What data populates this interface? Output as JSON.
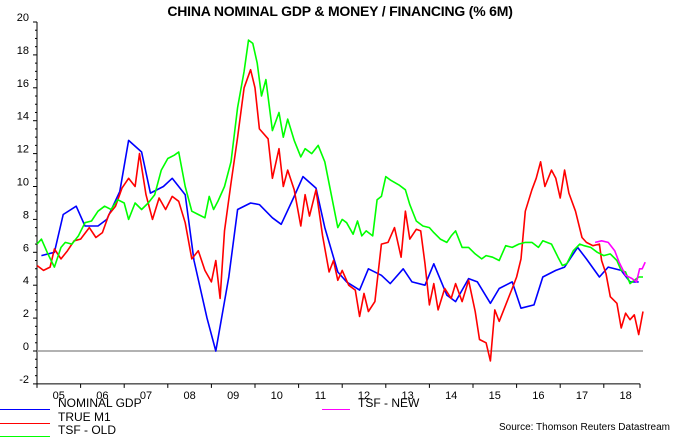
{
  "chart_data": {
    "type": "line",
    "title": "CHINA NOMINAL GDP & MONEY / FINANCING (% 6M)",
    "xlabel": "",
    "ylabel": "",
    "ylim": [
      -2,
      20
    ],
    "yticks": [
      -2,
      0,
      2,
      4,
      6,
      8,
      10,
      12,
      14,
      16,
      18,
      20
    ],
    "xlim": [
      2005.0,
      2018.83
    ],
    "xtick_labels": [
      "05",
      "06",
      "07",
      "08",
      "09",
      "10",
      "11",
      "12",
      "13",
      "14",
      "15",
      "16",
      "17",
      "18"
    ],
    "zero_line": true,
    "grid": false,
    "legend_position": "bottom",
    "series": [
      {
        "name": "NOMINAL GDP",
        "color": "#0000ff",
        "points": [
          [
            2005.1,
            5.8
          ],
          [
            2005.4,
            6.0
          ],
          [
            2005.6,
            8.3
          ],
          [
            2005.9,
            8.8
          ],
          [
            2006.1,
            7.6
          ],
          [
            2006.4,
            7.6
          ],
          [
            2006.6,
            8.0
          ],
          [
            2006.9,
            9.7
          ],
          [
            2007.1,
            12.8
          ],
          [
            2007.4,
            12.1
          ],
          [
            2007.6,
            9.6
          ],
          [
            2007.9,
            10.0
          ],
          [
            2008.1,
            10.5
          ],
          [
            2008.4,
            9.5
          ],
          [
            2008.6,
            5.5
          ],
          [
            2008.9,
            2.0
          ],
          [
            2009.1,
            0.0
          ],
          [
            2009.4,
            4.5
          ],
          [
            2009.6,
            8.6
          ],
          [
            2009.9,
            9.0
          ],
          [
            2010.1,
            8.9
          ],
          [
            2010.4,
            8.1
          ],
          [
            2010.6,
            7.7
          ],
          [
            2010.9,
            9.4
          ],
          [
            2011.1,
            10.6
          ],
          [
            2011.4,
            9.9
          ],
          [
            2011.6,
            7.5
          ],
          [
            2011.9,
            4.8
          ],
          [
            2012.1,
            4.2
          ],
          [
            2012.4,
            3.7
          ],
          [
            2012.6,
            5.0
          ],
          [
            2012.9,
            4.6
          ],
          [
            2013.1,
            4.1
          ],
          [
            2013.4,
            5.0
          ],
          [
            2013.6,
            4.2
          ],
          [
            2013.9,
            4.0
          ],
          [
            2014.1,
            5.3
          ],
          [
            2014.4,
            3.4
          ],
          [
            2014.6,
            3.0
          ],
          [
            2014.9,
            4.4
          ],
          [
            2015.1,
            4.2
          ],
          [
            2015.4,
            2.9
          ],
          [
            2015.6,
            3.8
          ],
          [
            2015.9,
            4.2
          ],
          [
            2016.1,
            2.6
          ],
          [
            2016.4,
            2.8
          ],
          [
            2016.6,
            4.5
          ],
          [
            2016.9,
            4.9
          ],
          [
            2017.1,
            5.1
          ],
          [
            2017.4,
            6.3
          ],
          [
            2017.6,
            5.6
          ],
          [
            2017.9,
            4.5
          ],
          [
            2018.1,
            5.1
          ],
          [
            2018.4,
            4.9
          ],
          [
            2018.6,
            4.2
          ],
          [
            2018.8,
            4.2
          ]
        ]
      },
      {
        "name": "TRUE M1",
        "color": "#ff0000",
        "points": [
          [
            2005.0,
            5.2
          ],
          [
            2005.15,
            4.9
          ],
          [
            2005.3,
            5.1
          ],
          [
            2005.4,
            6.2
          ],
          [
            2005.55,
            5.6
          ],
          [
            2005.7,
            6.1
          ],
          [
            2005.85,
            6.7
          ],
          [
            2006.0,
            6.8
          ],
          [
            2006.2,
            7.5
          ],
          [
            2006.35,
            6.9
          ],
          [
            2006.5,
            7.2
          ],
          [
            2006.65,
            8.3
          ],
          [
            2006.8,
            8.8
          ],
          [
            2006.95,
            9.9
          ],
          [
            2007.1,
            10.5
          ],
          [
            2007.25,
            10.0
          ],
          [
            2007.35,
            12.0
          ],
          [
            2007.5,
            9.5
          ],
          [
            2007.65,
            8.0
          ],
          [
            2007.8,
            9.3
          ],
          [
            2007.95,
            8.6
          ],
          [
            2008.1,
            9.4
          ],
          [
            2008.25,
            9.1
          ],
          [
            2008.4,
            7.8
          ],
          [
            2008.55,
            5.6
          ],
          [
            2008.7,
            6.1
          ],
          [
            2008.85,
            4.9
          ],
          [
            2009.0,
            4.2
          ],
          [
            2009.1,
            5.5
          ],
          [
            2009.2,
            3.2
          ],
          [
            2009.3,
            7.3
          ],
          [
            2009.45,
            10.2
          ],
          [
            2009.6,
            13.0
          ],
          [
            2009.75,
            16.0
          ],
          [
            2009.9,
            17.1
          ],
          [
            2010.0,
            16.0
          ],
          [
            2010.1,
            13.5
          ],
          [
            2010.3,
            12.9
          ],
          [
            2010.4,
            10.5
          ],
          [
            2010.55,
            12.3
          ],
          [
            2010.65,
            10.0
          ],
          [
            2010.75,
            11.0
          ],
          [
            2010.9,
            9.8
          ],
          [
            2011.05,
            7.6
          ],
          [
            2011.15,
            9.5
          ],
          [
            2011.25,
            8.2
          ],
          [
            2011.4,
            9.8
          ],
          [
            2011.55,
            7.0
          ],
          [
            2011.7,
            4.8
          ],
          [
            2011.8,
            5.5
          ],
          [
            2011.9,
            4.3
          ],
          [
            2012.0,
            4.9
          ],
          [
            2012.15,
            4.0
          ],
          [
            2012.3,
            3.7
          ],
          [
            2012.4,
            2.1
          ],
          [
            2012.5,
            3.5
          ],
          [
            2012.6,
            2.4
          ],
          [
            2012.75,
            3.0
          ],
          [
            2012.9,
            6.5
          ],
          [
            2013.05,
            6.6
          ],
          [
            2013.2,
            7.5
          ],
          [
            2013.35,
            5.7
          ],
          [
            2013.45,
            8.5
          ],
          [
            2013.55,
            6.8
          ],
          [
            2013.7,
            7.4
          ],
          [
            2013.8,
            7.3
          ],
          [
            2013.9,
            5.3
          ],
          [
            2014.0,
            2.8
          ],
          [
            2014.1,
            4.1
          ],
          [
            2014.2,
            2.5
          ],
          [
            2014.35,
            3.8
          ],
          [
            2014.5,
            3.2
          ],
          [
            2014.6,
            4.1
          ],
          [
            2014.75,
            3.0
          ],
          [
            2014.9,
            4.3
          ],
          [
            2015.05,
            2.4
          ],
          [
            2015.15,
            0.7
          ],
          [
            2015.3,
            0.5
          ],
          [
            2015.4,
            -0.6
          ],
          [
            2015.5,
            2.5
          ],
          [
            2015.6,
            1.8
          ],
          [
            2015.75,
            2.8
          ],
          [
            2015.9,
            3.8
          ],
          [
            2016.0,
            4.5
          ],
          [
            2016.1,
            5.6
          ],
          [
            2016.2,
            8.5
          ],
          [
            2016.35,
            9.8
          ],
          [
            2016.45,
            10.5
          ],
          [
            2016.55,
            11.5
          ],
          [
            2016.65,
            10.0
          ],
          [
            2016.8,
            11.0
          ],
          [
            2016.9,
            10.5
          ],
          [
            2017.0,
            9.3
          ],
          [
            2017.1,
            11.0
          ],
          [
            2017.2,
            9.6
          ],
          [
            2017.35,
            8.5
          ],
          [
            2017.5,
            6.9
          ],
          [
            2017.6,
            6.6
          ],
          [
            2017.75,
            6.4
          ],
          [
            2017.9,
            6.5
          ],
          [
            2017.95,
            5.5
          ],
          [
            2018.05,
            4.7
          ],
          [
            2018.15,
            3.3
          ],
          [
            2018.3,
            2.9
          ],
          [
            2018.4,
            1.4
          ],
          [
            2018.5,
            2.3
          ],
          [
            2018.6,
            1.9
          ],
          [
            2018.7,
            2.2
          ],
          [
            2018.8,
            1.0
          ],
          [
            2018.9,
            2.4
          ]
        ]
      },
      {
        "name": "TSF - OLD",
        "color": "#00ff00",
        "points": [
          [
            2005.0,
            6.5
          ],
          [
            2005.1,
            6.8
          ],
          [
            2005.25,
            5.9
          ],
          [
            2005.4,
            5.1
          ],
          [
            2005.55,
            6.3
          ],
          [
            2005.65,
            6.6
          ],
          [
            2005.8,
            6.5
          ],
          [
            2005.95,
            7.0
          ],
          [
            2006.1,
            7.8
          ],
          [
            2006.25,
            7.9
          ],
          [
            2006.4,
            8.5
          ],
          [
            2006.55,
            8.8
          ],
          [
            2006.7,
            8.6
          ],
          [
            2006.85,
            9.2
          ],
          [
            2007.0,
            9.0
          ],
          [
            2007.1,
            8.0
          ],
          [
            2007.25,
            9.0
          ],
          [
            2007.4,
            8.6
          ],
          [
            2007.55,
            9.0
          ],
          [
            2007.7,
            9.5
          ],
          [
            2007.85,
            11.0
          ],
          [
            2008.0,
            11.7
          ],
          [
            2008.15,
            11.9
          ],
          [
            2008.25,
            12.1
          ],
          [
            2008.4,
            10.0
          ],
          [
            2008.55,
            8.5
          ],
          [
            2008.7,
            8.3
          ],
          [
            2008.85,
            8.1
          ],
          [
            2008.95,
            9.4
          ],
          [
            2009.05,
            8.6
          ],
          [
            2009.15,
            9.1
          ],
          [
            2009.3,
            10.0
          ],
          [
            2009.45,
            11.5
          ],
          [
            2009.6,
            14.8
          ],
          [
            2009.75,
            17.0
          ],
          [
            2009.85,
            18.9
          ],
          [
            2009.95,
            18.7
          ],
          [
            2010.05,
            17.5
          ],
          [
            2010.15,
            15.5
          ],
          [
            2010.25,
            16.5
          ],
          [
            2010.4,
            13.4
          ],
          [
            2010.55,
            14.5
          ],
          [
            2010.65,
            13.0
          ],
          [
            2010.75,
            14.1
          ],
          [
            2010.9,
            12.8
          ],
          [
            2011.05,
            11.8
          ],
          [
            2011.15,
            12.3
          ],
          [
            2011.3,
            12.0
          ],
          [
            2011.45,
            12.5
          ],
          [
            2011.6,
            11.5
          ],
          [
            2011.75,
            9.5
          ],
          [
            2011.9,
            7.5
          ],
          [
            2012.0,
            8.0
          ],
          [
            2012.1,
            7.8
          ],
          [
            2012.25,
            7.1
          ],
          [
            2012.35,
            7.9
          ],
          [
            2012.45,
            7.0
          ],
          [
            2012.55,
            7.3
          ],
          [
            2012.7,
            7.0
          ],
          [
            2012.8,
            9.2
          ],
          [
            2012.9,
            9.4
          ],
          [
            2013.0,
            10.6
          ],
          [
            2013.1,
            10.4
          ],
          [
            2013.3,
            10.1
          ],
          [
            2013.45,
            9.8
          ],
          [
            2013.55,
            8.9
          ],
          [
            2013.7,
            7.9
          ],
          [
            2013.85,
            7.6
          ],
          [
            2014.0,
            7.5
          ],
          [
            2014.1,
            7.2
          ],
          [
            2014.25,
            6.8
          ],
          [
            2014.4,
            6.6
          ],
          [
            2014.5,
            7.0
          ],
          [
            2014.6,
            7.3
          ],
          [
            2014.75,
            6.3
          ],
          [
            2014.9,
            6.3
          ],
          [
            2015.05,
            5.9
          ],
          [
            2015.2,
            5.6
          ],
          [
            2015.3,
            5.8
          ],
          [
            2015.45,
            5.7
          ],
          [
            2015.6,
            5.5
          ],
          [
            2015.75,
            6.4
          ],
          [
            2015.9,
            6.3
          ],
          [
            2016.05,
            6.5
          ],
          [
            2016.2,
            6.6
          ],
          [
            2016.35,
            6.6
          ],
          [
            2016.5,
            6.3
          ],
          [
            2016.6,
            6.7
          ],
          [
            2016.8,
            6.5
          ],
          [
            2016.95,
            5.7
          ],
          [
            2017.05,
            5.2
          ],
          [
            2017.15,
            5.3
          ],
          [
            2017.3,
            6.1
          ],
          [
            2017.45,
            6.5
          ],
          [
            2017.55,
            6.4
          ],
          [
            2017.7,
            6.3
          ],
          [
            2017.85,
            6.0
          ],
          [
            2018.0,
            5.8
          ],
          [
            2018.15,
            5.9
          ],
          [
            2018.3,
            5.5
          ],
          [
            2018.4,
            4.9
          ],
          [
            2018.5,
            4.8
          ],
          [
            2018.6,
            4.1
          ],
          [
            2018.7,
            4.3
          ],
          [
            2018.8,
            4.5
          ],
          [
            2018.9,
            4.5
          ]
        ]
      },
      {
        "name": "TSF - NEW",
        "color": "#ff00ff",
        "points": [
          [
            2017.8,
            6.6
          ],
          [
            2017.95,
            6.7
          ],
          [
            2018.1,
            6.6
          ],
          [
            2018.25,
            6.1
          ],
          [
            2018.35,
            5.4
          ],
          [
            2018.5,
            4.6
          ],
          [
            2018.65,
            4.4
          ],
          [
            2018.75,
            4.2
          ],
          [
            2018.82,
            5.0
          ],
          [
            2018.88,
            5.0
          ],
          [
            2018.95,
            5.4
          ]
        ]
      }
    ]
  },
  "legend": {
    "items": [
      {
        "label": "NOMINAL GDP",
        "color": "#0000ff"
      },
      {
        "label": "TRUE M1",
        "color": "#ff0000"
      },
      {
        "label": "TSF - OLD",
        "color": "#00ff00"
      },
      {
        "label": "TSF - NEW",
        "color": "#ff00ff"
      }
    ]
  },
  "source": "Source: Thomson Reuters Datastream"
}
